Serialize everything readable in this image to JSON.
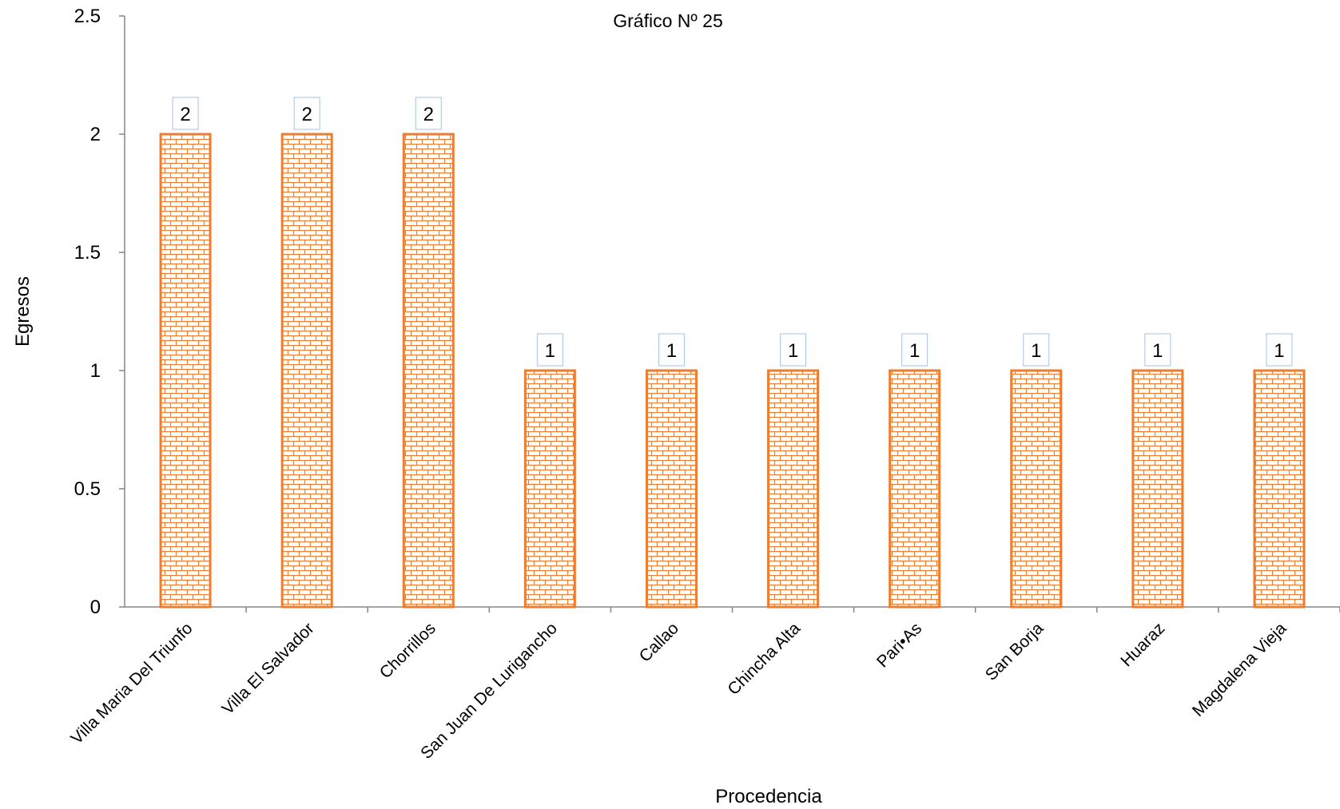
{
  "chart_data": {
    "type": "bar",
    "title": "Gráfico Nº 25",
    "xlabel": "Procedencia",
    "ylabel": "Egresos",
    "ylim": [
      0,
      2.5
    ],
    "yticks": [
      0,
      0.5,
      1,
      1.5,
      2,
      2.5
    ],
    "categories": [
      "Villa Maria Del Triunfo",
      "Villa El Salvador",
      "Chorrillos",
      "San Juan De Lurigancho",
      "Callao",
      "Chincha Alta",
      "Pari•As",
      "San Borja",
      "Huaraz",
      "Magdalena Vieja"
    ],
    "values": [
      2,
      2,
      2,
      1,
      1,
      1,
      1,
      1,
      1,
      1
    ],
    "grid": false,
    "legend": "none",
    "colors": {
      "bar": "#ED7D31",
      "bar_fill": "#FFFFFF",
      "label_border": "#A6C3E6"
    }
  }
}
